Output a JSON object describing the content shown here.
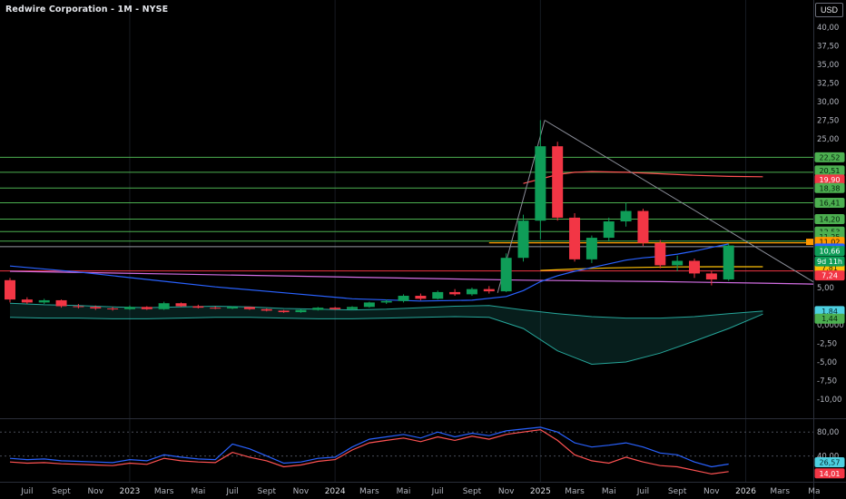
{
  "header": {
    "title": "Redwire Corporation - 1M - NYSE",
    "currency_button": "USD"
  },
  "colors": {
    "bg": "#000000",
    "axis_text": "#b2b5be",
    "axis_text_bright": "#dcdee3",
    "axis_border": "#2a2e39",
    "grid": "#161a21",
    "band": "#4a4e59",
    "up": "#0f9d58",
    "down": "#f23645",
    "hline_green": "#4caf50",
    "hline_red": "#f23645",
    "hline_gray": "#9598a1",
    "ma_blue": "#2962ff",
    "ma_magenta": "#d36ee4",
    "ma_red": "#ff5252",
    "ma_yellow": "#ffc107",
    "ma_orange": "#ff9800",
    "cloud_fill": "rgba(38,166,154,0.18)",
    "cloud_edge": "#26a69a",
    "trend": "#8a8d98",
    "rsi_blue": "#2962ff",
    "rsi_orange": "#ff5252"
  },
  "price_axis": {
    "ticks": [
      {
        "label": "40,00",
        "price": 40
      },
      {
        "label": "37,50",
        "price": 37.5
      },
      {
        "label": "35,00",
        "price": 35
      },
      {
        "label": "32,50",
        "price": 32.5
      },
      {
        "label": "30,00",
        "price": 30
      },
      {
        "label": "27,50",
        "price": 27.5
      },
      {
        "label": "25,00",
        "price": 25
      },
      {
        "label": "5,00",
        "price": 5
      },
      {
        "label": "0,0000",
        "price": 0
      },
      {
        "label": "-2,50",
        "price": -2.5
      },
      {
        "label": "-5,00",
        "price": -5
      },
      {
        "label": "-7,50",
        "price": -7.5
      },
      {
        "label": "-10,00",
        "price": -10
      }
    ]
  },
  "price_badges": [
    {
      "label": "22,52",
      "price": 22.52,
      "bg": "#4caf50",
      "fg": "#06220d",
      "dy": 0
    },
    {
      "label": "20,51",
      "price": 20.51,
      "bg": "#4caf50",
      "fg": "#06220d",
      "dy": -2
    },
    {
      "label": "19,90",
      "price": 19.9,
      "bg": "#f23645",
      "fg": "#ffffff",
      "dy": 3
    },
    {
      "label": "18,38",
      "price": 18.38,
      "bg": "#4caf50",
      "fg": "#06220d",
      "dy": 0
    },
    {
      "label": "16,41",
      "price": 16.41,
      "bg": "#4caf50",
      "fg": "#06220d",
      "dy": 0
    },
    {
      "label": "14,20",
      "price": 14.2,
      "bg": "#4caf50",
      "fg": "#06220d",
      "dy": 0
    },
    {
      "label": "12,53",
      "price": 12.53,
      "bg": "#4caf50",
      "fg": "#06220d",
      "dy": 0
    },
    {
      "label": "11,25",
      "price": 11.25,
      "bg": "#4caf50",
      "fg": "#06220d",
      "dy": -5
    },
    {
      "label": "11,02",
      "price": 11.02,
      "bg": "#ff9800",
      "fg": "#1f1400",
      "dy": -1,
      "tag": true
    },
    {
      "label": "10,87",
      "price": 10.87,
      "bg": "#2962ff",
      "fg": "#ffffff",
      "dy": 5
    },
    {
      "label": "10,66",
      "price": 10.66,
      "bg": "#0f9d58",
      "fg": "#ffffff",
      "dy": 6
    },
    {
      "label": "7,81",
      "price": 7.81,
      "bg": "#ffc107",
      "fg": "#241a00",
      "dy": 1
    },
    {
      "label": "7,24",
      "price": 7.24,
      "bg": "#f23645",
      "fg": "#ffffff",
      "dy": 5
    },
    {
      "label": "1,84",
      "price": 1.84,
      "bg": "#4dd0e1",
      "fg": "#00262b",
      "dy": 0
    },
    {
      "label": "1,44",
      "price": 1.44,
      "bg": "#4caf50",
      "fg": "#06220d",
      "dy": 5
    }
  ],
  "countdown": {
    "label": "9d 11h",
    "price": 10.66,
    "dy": 17.5,
    "bg": "#0f9d58",
    "fg": "#ffffff"
  },
  "time_axis": [
    {
      "label": "Juil",
      "i": 1
    },
    {
      "label": "Sept",
      "i": 3
    },
    {
      "label": "Nov",
      "i": 5
    },
    {
      "label": "2023",
      "i": 7,
      "year": true
    },
    {
      "label": "Mars",
      "i": 9
    },
    {
      "label": "Mai",
      "i": 11
    },
    {
      "label": "Juil",
      "i": 13
    },
    {
      "label": "Sept",
      "i": 15
    },
    {
      "label": "Nov",
      "i": 17
    },
    {
      "label": "2024",
      "i": 19,
      "year": true
    },
    {
      "label": "Mars",
      "i": 21
    },
    {
      "label": "Mai",
      "i": 23
    },
    {
      "label": "Juil",
      "i": 25
    },
    {
      "label": "Sept",
      "i": 27
    },
    {
      "label": "Nov",
      "i": 29
    },
    {
      "label": "2025",
      "i": 31,
      "year": true
    },
    {
      "label": "Mars",
      "i": 33
    },
    {
      "label": "Mai",
      "i": 35
    },
    {
      "label": "Juil",
      "i": 37
    },
    {
      "label": "Sept",
      "i": 39
    },
    {
      "label": "Nov",
      "i": 41
    },
    {
      "label": "2026",
      "i": 43,
      "year": true
    },
    {
      "label": "Mars",
      "i": 45
    },
    {
      "label": "Ma",
      "i": 47
    }
  ],
  "indicator_axis": {
    "ticks": [
      {
        "label": "80,00",
        "value": 80
      },
      {
        "label": "40,00",
        "value": 40
      }
    ],
    "badges": [
      {
        "label": "26,57",
        "value": 26.57,
        "bg": "#4dd0e1",
        "fg": "#00262b",
        "dy": -2
      },
      {
        "label": "14,01",
        "value": 14.01,
        "bg": "#f23645",
        "fg": "#ffffff",
        "dy": 2
      }
    ]
  },
  "chart_data": {
    "type": "candlestick",
    "symbol_title": "Redwire Corporation",
    "interval": "1M",
    "exchange": "NYSE",
    "ylim": [
      -10.5,
      41
    ],
    "year_grid": [
      7,
      19,
      31,
      43
    ],
    "candles": [
      [
        6.0,
        6.3,
        3.0,
        3.4
      ],
      [
        3.4,
        3.7,
        2.8,
        3.0
      ],
      [
        3.0,
        3.5,
        2.8,
        3.3
      ],
      [
        3.3,
        3.4,
        2.3,
        2.5
      ],
      [
        2.5,
        2.8,
        2.2,
        2.4
      ],
      [
        2.4,
        2.6,
        2.0,
        2.2
      ],
      [
        2.2,
        2.4,
        1.9,
        2.1
      ],
      [
        2.1,
        2.6,
        2.0,
        2.4
      ],
      [
        2.4,
        2.5,
        2.0,
        2.1
      ],
      [
        2.1,
        3.1,
        2.0,
        2.9
      ],
      [
        2.9,
        3.0,
        2.4,
        2.5
      ],
      [
        2.5,
        2.7,
        2.2,
        2.3
      ],
      [
        2.3,
        2.5,
        2.1,
        2.2
      ],
      [
        2.2,
        2.5,
        2.1,
        2.4
      ],
      [
        2.4,
        2.4,
        2.0,
        2.1
      ],
      [
        2.1,
        2.2,
        1.8,
        1.9
      ],
      [
        1.9,
        2.0,
        1.6,
        1.7
      ],
      [
        1.7,
        2.1,
        1.6,
        2.0
      ],
      [
        2.0,
        2.4,
        1.9,
        2.3
      ],
      [
        2.3,
        2.4,
        2.0,
        2.1
      ],
      [
        2.1,
        2.5,
        2.0,
        2.4
      ],
      [
        2.4,
        3.1,
        2.3,
        3.0
      ],
      [
        3.0,
        3.4,
        2.8,
        3.2
      ],
      [
        3.2,
        4.1,
        3.0,
        3.9
      ],
      [
        3.9,
        4.2,
        3.3,
        3.5
      ],
      [
        3.5,
        4.6,
        3.4,
        4.4
      ],
      [
        4.4,
        4.8,
        3.9,
        4.1
      ],
      [
        4.1,
        5.0,
        3.9,
        4.8
      ],
      [
        4.8,
        5.2,
        4.2,
        4.5
      ],
      [
        4.5,
        9.6,
        4.4,
        9.0
      ],
      [
        9.0,
        14.8,
        8.5,
        14.0
      ],
      [
        14.0,
        27.5,
        11.5,
        24.0
      ],
      [
        24.0,
        24.6,
        14.0,
        14.4
      ],
      [
        14.4,
        15.0,
        8.5,
        8.8
      ],
      [
        8.8,
        12.0,
        8.3,
        11.7
      ],
      [
        11.7,
        14.4,
        11.2,
        13.9
      ],
      [
        13.9,
        16.4,
        13.2,
        15.3
      ],
      [
        15.3,
        15.6,
        10.6,
        11.0
      ],
      [
        11.0,
        11.4,
        7.6,
        8.0
      ],
      [
        8.0,
        9.3,
        7.2,
        8.6
      ],
      [
        8.6,
        8.9,
        6.3,
        6.9
      ],
      [
        6.9,
        7.3,
        5.3,
        6.1
      ],
      [
        6.1,
        10.9,
        5.9,
        10.66
      ]
    ],
    "hlines": [
      {
        "price": 22.52,
        "color": "#4caf50"
      },
      {
        "price": 20.51,
        "color": "#4caf50"
      },
      {
        "price": 18.38,
        "color": "#4caf50"
      },
      {
        "price": 16.41,
        "color": "#4caf50"
      },
      {
        "price": 14.2,
        "color": "#4caf50"
      },
      {
        "price": 12.53,
        "color": "#4caf50"
      },
      {
        "price": 11.25,
        "color": "#4caf50"
      },
      {
        "price": 10.5,
        "color": "#9598a1"
      },
      {
        "price": 7.24,
        "color": "#f23645"
      }
    ],
    "lines": {
      "blue": [
        [
          0,
          7.9
        ],
        [
          4,
          7.1
        ],
        [
          8,
          6.1
        ],
        [
          12,
          5.1
        ],
        [
          16,
          4.3
        ],
        [
          20,
          3.5
        ],
        [
          24,
          3.2
        ],
        [
          27,
          3.3
        ],
        [
          29,
          3.8
        ],
        [
          30,
          4.6
        ],
        [
          31,
          5.8
        ],
        [
          32,
          6.6
        ],
        [
          33,
          7.2
        ],
        [
          34,
          7.7
        ],
        [
          35,
          8.2
        ],
        [
          36,
          8.7
        ],
        [
          37,
          9.0
        ],
        [
          38,
          9.2
        ],
        [
          39,
          9.5
        ],
        [
          40,
          9.9
        ],
        [
          41,
          10.4
        ],
        [
          42,
          10.87
        ]
      ],
      "magenta": [
        [
          0,
          7.2
        ],
        [
          10,
          6.8
        ],
        [
          20,
          6.4
        ],
        [
          30,
          6.0
        ],
        [
          38,
          5.8
        ],
        [
          44,
          5.6
        ],
        [
          47.5,
          5.45
        ]
      ],
      "red": [
        [
          30,
          19.0
        ],
        [
          31,
          19.6
        ],
        [
          32,
          20.2
        ],
        [
          33,
          20.5
        ],
        [
          34,
          20.6
        ],
        [
          36,
          20.5
        ],
        [
          38,
          20.3
        ],
        [
          40,
          20.1
        ],
        [
          42,
          19.95
        ],
        [
          44,
          19.9
        ]
      ],
      "yellow": [
        [
          31,
          7.3
        ],
        [
          33,
          7.5
        ],
        [
          35,
          7.65
        ],
        [
          37,
          7.72
        ],
        [
          39,
          7.78
        ],
        [
          41,
          7.8
        ],
        [
          44,
          7.81
        ]
      ],
      "orange": [
        [
          28,
          11.02
        ],
        [
          47.5,
          11.02
        ]
      ]
    },
    "trendlines": [
      [
        [
          28.5,
          4.3
        ],
        [
          31.25,
          27.5
        ]
      ],
      [
        [
          31.25,
          27.5
        ],
        [
          47.8,
          4.6
        ]
      ]
    ],
    "cloud": {
      "x": [
        0,
        2,
        4,
        6,
        8,
        10,
        12,
        14,
        16,
        18,
        20,
        22,
        24,
        26,
        28,
        30,
        32,
        34,
        36,
        38,
        40,
        42,
        44
      ],
      "upper": [
        2.9,
        2.7,
        2.6,
        2.4,
        2.3,
        2.4,
        2.5,
        2.4,
        2.2,
        2.1,
        2.0,
        2.1,
        2.3,
        2.5,
        2.6,
        2.0,
        1.5,
        1.1,
        0.9,
        0.9,
        1.1,
        1.5,
        1.84
      ],
      "lower": [
        1.0,
        0.9,
        0.9,
        0.8,
        0.8,
        0.9,
        1.0,
        1.0,
        0.9,
        0.8,
        0.8,
        0.9,
        1.0,
        1.1,
        1.0,
        -0.5,
        -3.5,
        -5.3,
        -5.0,
        -3.8,
        -2.2,
        -0.5,
        1.44
      ]
    },
    "indicator": {
      "bands": [
        80,
        40
      ],
      "blue": [
        36,
        34,
        35,
        32,
        31,
        30,
        29,
        34,
        32,
        42,
        38,
        35,
        34,
        60,
        52,
        40,
        28,
        30,
        36,
        38,
        55,
        68,
        72,
        76,
        70,
        80,
        72,
        78,
        74,
        82,
        85,
        88,
        80,
        62,
        55,
        58,
        62,
        55,
        45,
        42,
        30,
        22,
        26.57
      ],
      "orange": [
        30,
        28,
        29,
        27,
        26,
        25,
        24,
        28,
        26,
        36,
        32,
        30,
        29,
        46,
        38,
        32,
        22,
        25,
        31,
        34,
        50,
        62,
        66,
        70,
        64,
        72,
        66,
        73,
        68,
        76,
        80,
        84,
        66,
        42,
        32,
        28,
        38,
        30,
        24,
        22,
        16,
        10,
        14.01
      ]
    }
  }
}
